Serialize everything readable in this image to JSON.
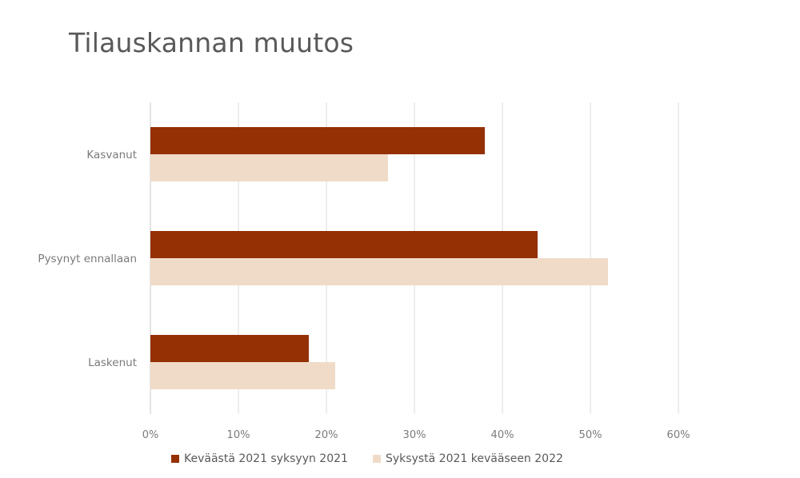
{
  "chart_data": {
    "type": "bar",
    "orientation": "horizontal",
    "title": "Tilauskannan muutos",
    "categories": [
      "Kasvanut",
      "Pysynyt ennallaan",
      "Laskenut"
    ],
    "series": [
      {
        "name": "Keväästä 2021 syksyyn 2021",
        "color": "#943004",
        "values": [
          38,
          44,
          18
        ]
      },
      {
        "name": "Syksystä 2021 kevääseen 2022",
        "color": "#f0dbc8",
        "values": [
          27,
          52,
          21
        ]
      }
    ],
    "xlim": [
      0,
      60
    ],
    "x_ticks": [
      0,
      10,
      20,
      30,
      40,
      50,
      60
    ],
    "tick_suffix": "%",
    "grid": true,
    "legend_position": "bottom"
  }
}
